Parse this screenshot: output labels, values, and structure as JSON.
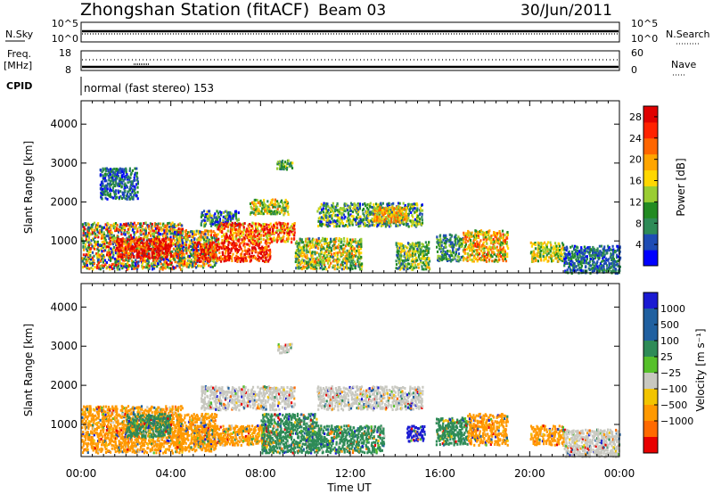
{
  "header": {
    "station": "Zhongshan Station (fitACF)",
    "beam": "Beam 03",
    "date": "30/Jun/2011"
  },
  "top_panels": {
    "nsky_label": "N.Sky",
    "nsky_ticks": [
      "10^5",
      "10^0"
    ],
    "nsearch_label": "N.Search",
    "nsearch_ticks": [
      "10^5",
      "10^0"
    ],
    "freq_label_1": "Freq.",
    "freq_label_2": "[MHz]",
    "freq_ticks": [
      "18",
      "8"
    ],
    "nave_label": "Nave",
    "nave_ticks": [
      "60",
      "0"
    ],
    "cpid_label": "CPID",
    "cpid_text": "normal (fast stereo) 153"
  },
  "colors": {
    "power": [
      "#0000ff",
      "#1e4cb4",
      "#2e8b57",
      "#228b22",
      "#9acd32",
      "#ffd700",
      "#ffa500",
      "#ff6600",
      "#ff2200",
      "#e00000"
    ],
    "velocity": {
      "strong_toward": "#1a1ad2",
      "toward": "#2060a0",
      "mid_toward": "#2e8b57",
      "weak_toward": "#56c02a",
      "near_zero": "#c8c8c0",
      "weak_away": "#f2c400",
      "away": "#ff9900",
      "mid_away": "#ff6a00",
      "strong_away": "#e80000"
    }
  },
  "chart_data": [
    {
      "type": "heatmap",
      "ylabel": "Slant Range [km]",
      "xlabel": "Time UT",
      "x_ticks": [
        "00:00",
        "04:00",
        "08:00",
        "12:00",
        "16:00",
        "20:00",
        "00:00"
      ],
      "y_ticks": [
        1000,
        2000,
        3000,
        4000
      ],
      "ylim": [
        180,
        4600
      ],
      "xlim_hours": [
        0,
        24
      ],
      "colorbar_label": "Power [dB]",
      "colorbar_ticks": [
        "4",
        "8",
        "12",
        "16",
        "20",
        "24",
        "28"
      ],
      "clim": [
        0,
        30
      ],
      "regions": [
        {
          "t0": 0.0,
          "t1": 4.5,
          "r0": 300,
          "r1": 1500,
          "v": 15,
          "s": 14
        },
        {
          "t0": 1.5,
          "t1": 4.0,
          "r0": 600,
          "r1": 1100,
          "v": 28,
          "s": 10
        },
        {
          "t0": 4.2,
          "t1": 6.0,
          "r0": 350,
          "r1": 1300,
          "v": 14,
          "s": 12
        },
        {
          "t0": 5.3,
          "t1": 7.0,
          "r0": 1400,
          "r1": 1800,
          "v": 8,
          "s": 8
        },
        {
          "t0": 5.0,
          "t1": 8.4,
          "r0": 500,
          "r1": 1000,
          "v": 26,
          "s": 8
        },
        {
          "t0": 6.0,
          "t1": 9.5,
          "r0": 1000,
          "r1": 1500,
          "v": 22,
          "s": 9
        },
        {
          "t0": 7.5,
          "t1": 9.2,
          "r0": 1700,
          "r1": 2100,
          "v": 14,
          "s": 8
        },
        {
          "t0": 8.7,
          "t1": 9.4,
          "r0": 2850,
          "r1": 3100,
          "v": 10,
          "s": 6
        },
        {
          "t0": 9.5,
          "t1": 12.5,
          "r0": 300,
          "r1": 1100,
          "v": 14,
          "s": 9
        },
        {
          "t0": 10.5,
          "t1": 15.2,
          "r0": 1400,
          "r1": 2000,
          "v": 10,
          "s": 8
        },
        {
          "t0": 13.0,
          "t1": 14.5,
          "r0": 1500,
          "r1": 1900,
          "v": 18,
          "s": 6
        },
        {
          "t0": 14.0,
          "t1": 15.5,
          "r0": 300,
          "r1": 1000,
          "v": 12,
          "s": 7
        },
        {
          "t0": 15.8,
          "t1": 17.0,
          "r0": 500,
          "r1": 1200,
          "v": 9,
          "s": 6
        },
        {
          "t0": 17.0,
          "t1": 19.0,
          "r0": 500,
          "r1": 1300,
          "v": 18,
          "s": 8
        },
        {
          "t0": 20.0,
          "t1": 21.5,
          "r0": 500,
          "r1": 1000,
          "v": 14,
          "s": 6
        },
        {
          "t0": 21.5,
          "t1": 24.0,
          "r0": 200,
          "r1": 900,
          "v": 6,
          "s": 4
        },
        {
          "t0": 0.8,
          "t1": 2.5,
          "r0": 2100,
          "r1": 2900,
          "v": 6,
          "s": 5
        }
      ]
    },
    {
      "type": "heatmap",
      "ylabel": "Slant Range [km]",
      "xlabel": "Time UT",
      "x_ticks": [
        "00:00",
        "04:00",
        "08:00",
        "12:00",
        "16:00",
        "20:00",
        "00:00"
      ],
      "y_ticks": [
        1000,
        2000,
        3000,
        4000
      ],
      "ylim": [
        180,
        4600
      ],
      "xlim_hours": [
        0,
        24
      ],
      "colorbar_label": "Velocity [m s⁻¹]",
      "colorbar_ticks": [
        "1000",
        "500",
        "100",
        "25",
        "−25",
        "−100",
        "−500",
        "−1000"
      ],
      "regions": [
        {
          "t0": 0.0,
          "t1": 4.5,
          "r0": 300,
          "r1": 1500,
          "v": "away"
        },
        {
          "t0": 2.0,
          "t1": 4.0,
          "r0": 700,
          "r1": 1300,
          "v": "mid_toward"
        },
        {
          "t0": 4.2,
          "t1": 6.0,
          "r0": 350,
          "r1": 1300,
          "v": "away"
        },
        {
          "t0": 5.0,
          "t1": 8.4,
          "r0": 500,
          "r1": 1000,
          "v": "away"
        },
        {
          "t0": 5.3,
          "t1": 9.5,
          "r0": 1400,
          "r1": 2000,
          "v": "near_zero"
        },
        {
          "t0": 8.0,
          "t1": 10.5,
          "r0": 300,
          "r1": 1300,
          "v": "mid_toward"
        },
        {
          "t0": 8.7,
          "t1": 9.4,
          "r0": 2850,
          "r1": 3100,
          "v": "near_zero"
        },
        {
          "t0": 10.0,
          "t1": 13.5,
          "r0": 300,
          "r1": 1000,
          "v": "mid_toward"
        },
        {
          "t0": 10.5,
          "t1": 15.2,
          "r0": 1400,
          "r1": 2000,
          "v": "near_zero"
        },
        {
          "t0": 14.5,
          "t1": 15.3,
          "r0": 600,
          "r1": 1000,
          "v": "strong_toward"
        },
        {
          "t0": 15.8,
          "t1": 17.2,
          "r0": 500,
          "r1": 1200,
          "v": "mid_toward"
        },
        {
          "t0": 17.2,
          "t1": 19.0,
          "r0": 500,
          "r1": 1300,
          "v": "away"
        },
        {
          "t0": 20.0,
          "t1": 21.5,
          "r0": 500,
          "r1": 1000,
          "v": "away"
        },
        {
          "t0": 21.5,
          "t1": 24.0,
          "r0": 200,
          "r1": 900,
          "v": "near_zero"
        }
      ]
    }
  ]
}
